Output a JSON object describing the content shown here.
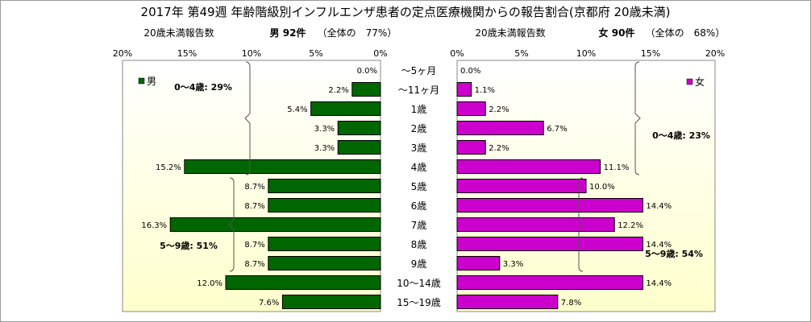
{
  "chart_data": {
    "type": "bar",
    "title": "2017年 第49週 年齢階級別インフルエンザ患者の定点医療機関からの報告割合(京都府 20歳未満)",
    "categories": [
      "～5ヶ月",
      "～11ヶ月",
      "1歳",
      "2歳",
      "3歳",
      "4歳",
      "5歳",
      "6歳",
      "7歳",
      "8歳",
      "9歳",
      "10～14歳",
      "15～19歳"
    ],
    "xlim": [
      0,
      20
    ],
    "x_ticks": [
      "0%",
      "5%",
      "10%",
      "15%",
      "20%"
    ],
    "grid": false,
    "male": {
      "subtitle_left": "20歳未満報告数",
      "subtitle_count": "男 92件",
      "subtitle_share": "（全体の　77%）",
      "legend": "男",
      "color": "#006600",
      "values": [
        0.0,
        2.2,
        5.4,
        3.3,
        3.3,
        15.2,
        8.7,
        8.7,
        16.3,
        8.7,
        8.7,
        12.0,
        7.6
      ],
      "value_labels": [
        "0.0%",
        "2.2%",
        "5.4%",
        "3.3%",
        "3.3%",
        "15.2%",
        "8.7%",
        "8.7%",
        "16.3%",
        "8.7%",
        "8.7%",
        "12.0%",
        "7.6%"
      ],
      "group_labels": [
        "0～4歳: 29%",
        "5～9歳: 51%"
      ]
    },
    "female": {
      "subtitle_left": "20歳未満報告数",
      "subtitle_count": "女 90件",
      "subtitle_share": "（全体の　68%）",
      "legend": "女",
      "color": "#cc00cc",
      "values": [
        0.0,
        1.1,
        2.2,
        6.7,
        2.2,
        11.1,
        10.0,
        14.4,
        12.2,
        14.4,
        3.3,
        14.4,
        7.8
      ],
      "value_labels": [
        "0.0%",
        "1.1%",
        "2.2%",
        "6.7%",
        "2.2%",
        "11.1%",
        "10.0%",
        "14.4%",
        "12.2%",
        "14.4%",
        "3.3%",
        "14.4%",
        "7.8%"
      ],
      "group_labels": [
        "0～4歳: 23%",
        "5～9歳: 54%"
      ]
    },
    "colors": {
      "plot_bg": "#ffffee",
      "bar_border": "#000000"
    }
  }
}
